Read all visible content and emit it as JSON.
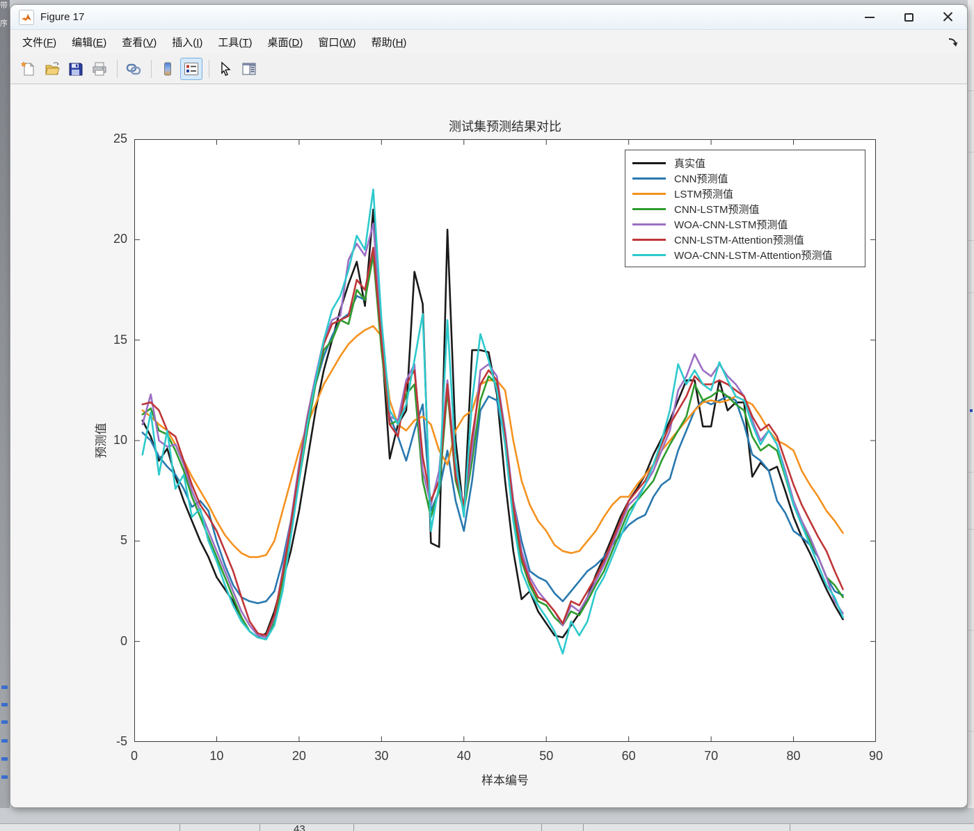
{
  "window": {
    "title": "Figure 17"
  },
  "menu": {
    "items": [
      {
        "label": "文件",
        "mnemonic": "F"
      },
      {
        "label": "编辑",
        "mnemonic": "E"
      },
      {
        "label": "查看",
        "mnemonic": "V"
      },
      {
        "label": "插入",
        "mnemonic": "I"
      },
      {
        "label": "工具",
        "mnemonic": "T"
      },
      {
        "label": "桌面",
        "mnemonic": "D"
      },
      {
        "label": "窗口",
        "mnemonic": "W"
      },
      {
        "label": "帮助",
        "mnemonic": "H"
      }
    ]
  },
  "toolbar": {
    "buttons": [
      "new-figure",
      "open-file",
      "save-figure",
      "print-figure",
      "link-plot",
      "insert-colorbar",
      "insert-legend",
      "edit-plot",
      "property-inspector"
    ],
    "active_button": "insert-legend"
  },
  "background": {
    "left_strip": {
      "char1": "带",
      "char2": "序"
    },
    "bottom_strip": {
      "cell_text": "43"
    }
  },
  "chart_data": {
    "type": "line",
    "title": "测试集预测结果对比",
    "xlabel": "样本编号",
    "ylabel": "预测值",
    "xlim": [
      0,
      90
    ],
    "ylim": [
      -5,
      25
    ],
    "xticks": [
      0,
      10,
      20,
      30,
      40,
      50,
      60,
      70,
      80,
      90
    ],
    "yticks": [
      -5,
      0,
      5,
      10,
      15,
      20,
      25
    ],
    "grid": false,
    "legend_position": "top-right",
    "x": {
      "start": 1,
      "step": 1,
      "count": 86
    },
    "series": [
      {
        "name": "真实值",
        "color": "#1a1a1a",
        "values": [
          11.0,
          10.2,
          9.0,
          9.6,
          8.2,
          7.0,
          6.0,
          5.0,
          4.2,
          3.2,
          2.6,
          2.0,
          1.2,
          0.5,
          0.2,
          0.4,
          1.5,
          3.0,
          4.5,
          6.5,
          9.0,
          11.5,
          13.5,
          15.0,
          16.5,
          17.8,
          18.9,
          16.7,
          21.5,
          15.0,
          9.1,
          10.8,
          11.5,
          18.4,
          16.8,
          4.9,
          4.7,
          20.5,
          10.0,
          6.3,
          14.5,
          14.5,
          14.4,
          12.3,
          8.0,
          4.5,
          2.1,
          2.5,
          1.5,
          0.9,
          0.3,
          0.2,
          0.8,
          1.4,
          2.2,
          3.3,
          4.2,
          5.2,
          6.2,
          7.0,
          7.6,
          8.3,
          9.3,
          10.1,
          11.0,
          12.0,
          13.0,
          13.0,
          10.7,
          10.7,
          13.0,
          11.5,
          11.9,
          11.9,
          8.2,
          8.9,
          8.5,
          8.7,
          7.5,
          6.2,
          5.2,
          4.4,
          3.5,
          2.6,
          1.8,
          1.1
        ]
      },
      {
        "name": "CNN预测值",
        "color": "#2878af",
        "values": [
          10.4,
          10.0,
          9.2,
          8.7,
          8.3,
          7.6,
          6.7,
          7.0,
          6.5,
          5.0,
          3.8,
          2.8,
          2.2,
          2.0,
          1.9,
          2.0,
          2.5,
          4.0,
          6.0,
          8.5,
          10.8,
          12.8,
          14.2,
          15.2,
          16.0,
          16.3,
          17.2,
          17.0,
          19.6,
          15.5,
          11.2,
          10.2,
          9.0,
          10.5,
          11.8,
          6.5,
          7.5,
          9.5,
          7.0,
          5.5,
          8.0,
          11.5,
          12.2,
          12.0,
          10.0,
          7.0,
          5.0,
          3.5,
          3.2,
          3.0,
          2.4,
          2.0,
          2.5,
          3.0,
          3.5,
          3.8,
          4.2,
          4.8,
          5.3,
          5.8,
          6.1,
          6.3,
          7.2,
          7.8,
          8.1,
          9.5,
          10.5,
          11.5,
          12.0,
          11.8,
          12.0,
          12.2,
          12.0,
          10.8,
          9.3,
          9.0,
          8.5,
          7.0,
          6.4,
          5.5,
          5.2,
          4.8,
          4.2,
          3.2,
          2.5,
          2.3
        ]
      },
      {
        "name": "LSTM预测值",
        "color": "#f5921f",
        "values": [
          11.5,
          11.2,
          10.8,
          10.5,
          9.8,
          9.0,
          8.2,
          7.5,
          6.8,
          6.0,
          5.3,
          4.8,
          4.4,
          4.2,
          4.2,
          4.3,
          5.0,
          6.5,
          8.0,
          9.5,
          10.8,
          11.8,
          12.8,
          13.5,
          14.2,
          14.8,
          15.2,
          15.5,
          15.7,
          15.2,
          12.0,
          10.8,
          10.5,
          11.0,
          11.2,
          10.8,
          9.5,
          8.8,
          10.5,
          11.2,
          11.5,
          12.8,
          13.0,
          13.0,
          12.5,
          10.0,
          8.0,
          6.8,
          6.0,
          5.5,
          4.8,
          4.5,
          4.4,
          4.5,
          5.0,
          5.5,
          6.2,
          6.8,
          7.2,
          7.2,
          7.8,
          8.3,
          8.8,
          9.5,
          10.0,
          10.5,
          11.0,
          11.5,
          11.9,
          12.0,
          11.9,
          12.0,
          12.2,
          12.0,
          11.8,
          11.2,
          10.5,
          10.0,
          9.8,
          9.5,
          8.5,
          7.8,
          7.2,
          6.5,
          6.0,
          5.4
        ]
      },
      {
        "name": "CNN-LSTM预测值",
        "color": "#2e9b2e",
        "values": [
          11.3,
          11.6,
          10.5,
          10.3,
          9.5,
          8.5,
          7.2,
          6.2,
          5.2,
          4.2,
          3.2,
          2.2,
          1.2,
          0.5,
          0.2,
          0.1,
          1.0,
          3.0,
          5.5,
          8.0,
          10.5,
          12.8,
          14.5,
          15.0,
          16.0,
          15.8,
          17.5,
          17.0,
          19.2,
          14.5,
          10.8,
          11.0,
          12.3,
          12.8,
          8.0,
          6.2,
          7.5,
          12.5,
          8.0,
          6.5,
          9.0,
          12.0,
          13.2,
          12.8,
          10.0,
          6.5,
          4.0,
          2.8,
          2.0,
          1.8,
          1.2,
          0.8,
          1.5,
          1.3,
          2.0,
          2.8,
          3.5,
          4.5,
          5.5,
          6.5,
          7.0,
          7.5,
          8.0,
          9.0,
          9.8,
          10.5,
          11.2,
          12.8,
          12.0,
          12.2,
          12.5,
          12.2,
          11.8,
          11.5,
          10.2,
          9.5,
          9.8,
          9.5,
          8.2,
          6.8,
          5.8,
          5.0,
          4.2,
          3.2,
          2.8,
          2.2
        ]
      },
      {
        "name": "WOA-CNN-LSTM预测值",
        "color": "#9c6fc4",
        "values": [
          10.8,
          12.3,
          10.0,
          9.7,
          9.8,
          8.8,
          7.5,
          6.5,
          5.5,
          4.5,
          3.5,
          2.5,
          1.5,
          0.8,
          0.3,
          0.2,
          1.2,
          3.5,
          6.0,
          8.8,
          11.2,
          13.2,
          15.0,
          16.0,
          16.2,
          19.0,
          19.8,
          19.2,
          20.8,
          15.5,
          11.2,
          11.0,
          13.0,
          13.8,
          8.5,
          6.8,
          8.5,
          13.0,
          8.5,
          6.8,
          9.5,
          13.5,
          13.8,
          13.2,
          10.5,
          7.0,
          4.5,
          3.2,
          2.5,
          2.0,
          1.5,
          0.8,
          1.8,
          1.5,
          2.2,
          3.0,
          3.8,
          4.8,
          5.8,
          6.8,
          7.2,
          7.8,
          8.5,
          9.5,
          10.5,
          12.5,
          13.2,
          14.3,
          13.5,
          13.2,
          13.8,
          13.2,
          12.8,
          12.2,
          11.0,
          10.0,
          10.5,
          9.8,
          8.5,
          7.0,
          6.0,
          5.2,
          4.2,
          3.2,
          2.0,
          1.4
        ]
      },
      {
        "name": "CNN-LSTM-Attention预测值",
        "color": "#bf3638",
        "values": [
          11.8,
          11.9,
          11.5,
          10.5,
          10.2,
          9.0,
          7.8,
          6.8,
          6.2,
          5.5,
          4.5,
          3.5,
          2.2,
          1.0,
          0.4,
          0.3,
          1.3,
          3.3,
          5.8,
          8.5,
          11.0,
          13.0,
          14.8,
          15.8,
          16.0,
          16.2,
          18.0,
          17.5,
          19.6,
          15.0,
          10.8,
          10.2,
          12.8,
          13.5,
          9.2,
          7.0,
          8.0,
          12.8,
          8.2,
          6.8,
          10.2,
          12.8,
          13.5,
          13.0,
          10.2,
          6.8,
          4.2,
          3.0,
          2.2,
          2.0,
          1.5,
          0.9,
          2.0,
          1.8,
          2.5,
          3.2,
          4.0,
          5.0,
          6.0,
          7.0,
          7.5,
          8.0,
          8.8,
          9.8,
          10.8,
          11.5,
          12.2,
          13.2,
          12.8,
          12.8,
          13.0,
          12.8,
          12.5,
          12.2,
          11.2,
          10.5,
          10.8,
          10.2,
          9.0,
          7.8,
          6.8,
          6.0,
          5.2,
          4.5,
          3.5,
          2.6
        ]
      },
      {
        "name": "WOA-CNN-LSTM-Attention预测值",
        "color": "#2ec9cd",
        "values": [
          9.3,
          11.4,
          8.3,
          10.5,
          7.6,
          8.3,
          6.2,
          6.6,
          5.0,
          4.0,
          2.8,
          1.8,
          1.0,
          0.5,
          0.2,
          0.1,
          0.8,
          2.5,
          5.2,
          8.0,
          10.8,
          13.0,
          15.0,
          16.5,
          17.2,
          18.5,
          20.2,
          19.5,
          22.5,
          16.0,
          11.5,
          10.8,
          11.8,
          14.0,
          16.3,
          5.5,
          7.8,
          16.0,
          9.0,
          6.2,
          12.0,
          15.3,
          14.0,
          12.5,
          9.8,
          6.0,
          3.5,
          2.5,
          1.8,
          1.2,
          0.5,
          -0.6,
          1.0,
          0.3,
          1.0,
          2.5,
          3.2,
          4.2,
          5.2,
          6.2,
          7.0,
          7.8,
          8.8,
          10.0,
          11.5,
          13.8,
          12.8,
          13.5,
          12.8,
          12.5,
          13.9,
          13.0,
          12.2,
          12.0,
          10.8,
          9.8,
          10.5,
          9.8,
          8.3,
          6.8,
          5.8,
          4.8,
          3.8,
          2.8,
          2.2,
          1.2
        ]
      }
    ]
  }
}
